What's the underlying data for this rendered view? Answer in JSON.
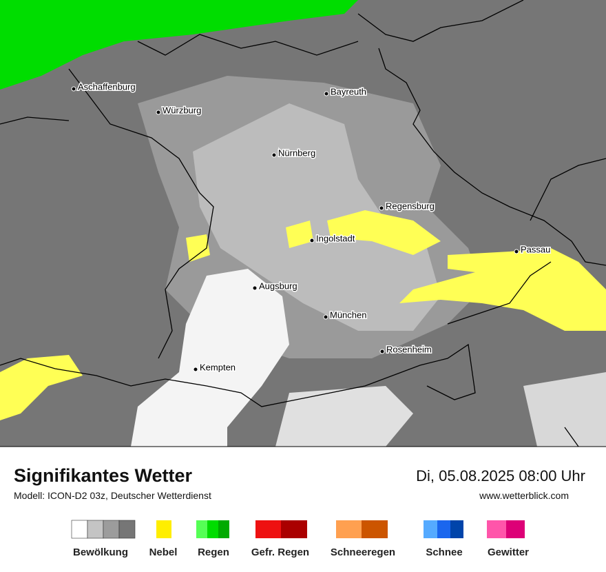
{
  "map": {
    "cities": [
      "Aschaffenburg",
      "Würzburg",
      "Bayreuth",
      "Nürnberg",
      "Regensburg",
      "Ingolstadt",
      "Passau",
      "Augsburg",
      "München",
      "Rosenheim",
      "Kempten"
    ]
  },
  "footer": {
    "title": "Signifikantes Wetter",
    "subtitle": "Modell: ICON-D2 03z, Deutscher Wetterdienst",
    "datetime": "Di, 05.08.2025 08:00 Uhr",
    "url": "www.wetterblick.com"
  },
  "legend": {
    "items": [
      "Bewölkung",
      "Nebel",
      "Regen",
      "Gefr. Regen",
      "Schneeregen",
      "Schnee",
      "Gewitter"
    ]
  }
}
